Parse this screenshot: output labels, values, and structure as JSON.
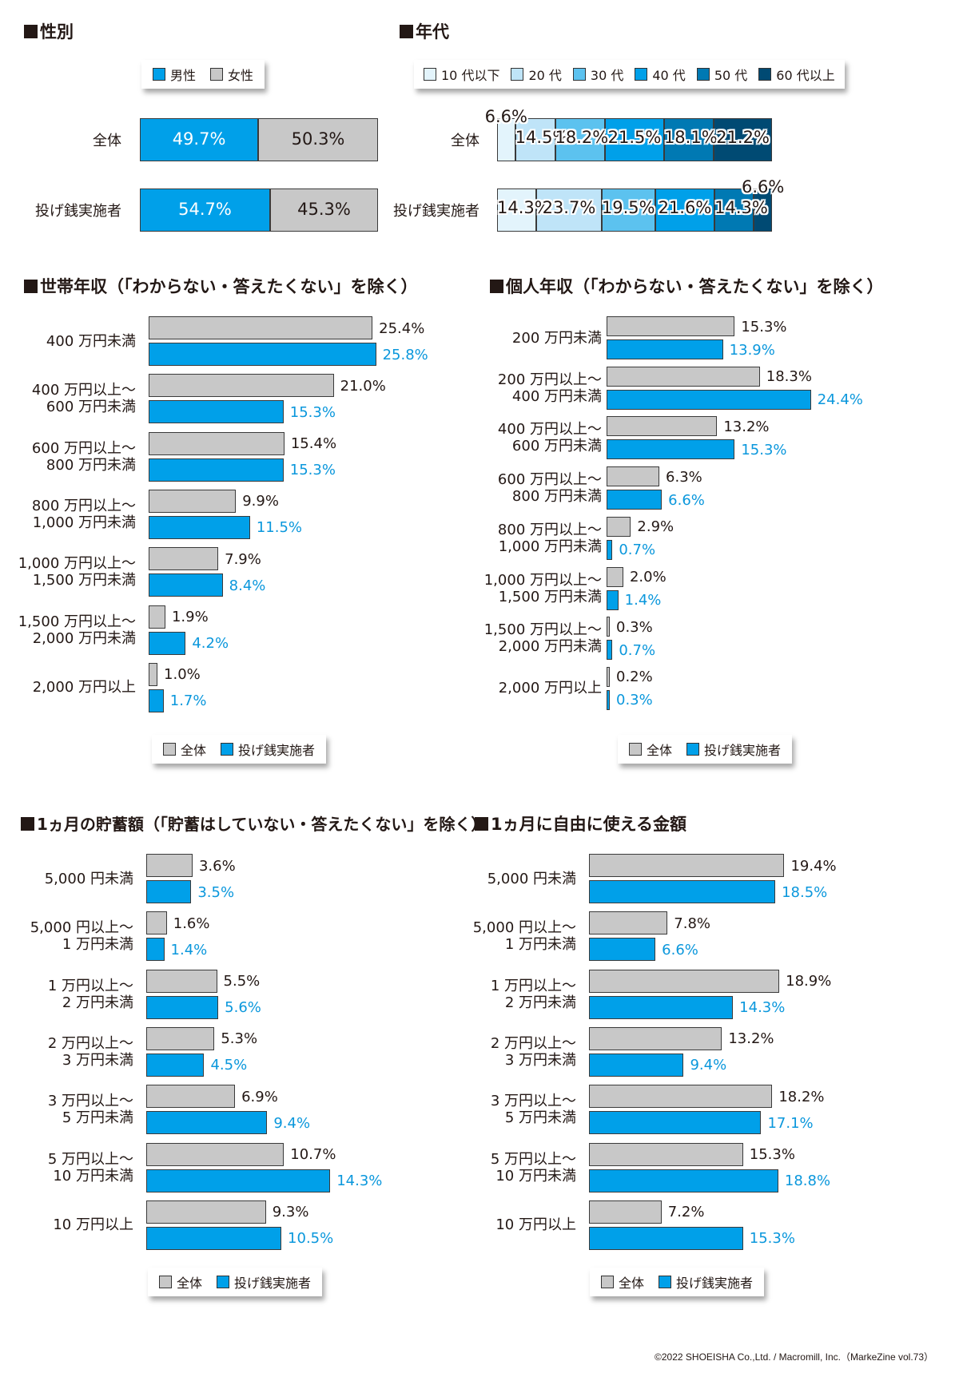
{
  "colors": {
    "all": "#c8c8c8",
    "nagesen": "#00a0e9",
    "value_all_text": "#231815",
    "value_nagesen_text": "#0a97dc",
    "age": [
      "#e3f4fc",
      "#bfe4f8",
      "#5cc2ef",
      "#00a0e9",
      "#0079b3",
      "#004a73"
    ]
  },
  "footer": "©2022 SHOEISHA Co.,Ltd. / Macromill, Inc.（MarkeZine vol.73）",
  "chart_data": [
    {
      "id": "gender",
      "type": "bar",
      "stacked": true,
      "orientation": "horizontal",
      "title": "性別",
      "legend": [
        "男性",
        "女性"
      ],
      "categories": [
        "全体",
        "投げ銭実施者"
      ],
      "series": [
        {
          "name": "男性",
          "values": [
            49.7,
            54.7
          ],
          "labels": [
            "49.7%",
            "54.7%"
          ]
        },
        {
          "name": "女性",
          "values": [
            50.3,
            45.3
          ],
          "labels": [
            "50.3%",
            "45.3%"
          ]
        }
      ],
      "unit": "%"
    },
    {
      "id": "age",
      "type": "bar",
      "stacked": true,
      "orientation": "horizontal",
      "title": "年代",
      "legend": [
        "10 代以下",
        "20 代",
        "30 代",
        "40 代",
        "50 代",
        "60 代以上"
      ],
      "categories": [
        "全体",
        "投げ銭実施者"
      ],
      "series": [
        {
          "name": "10 代以下",
          "values": [
            6.6,
            14.3
          ],
          "labels": [
            "6.6%",
            "14.3%"
          ]
        },
        {
          "name": "20 代",
          "values": [
            14.5,
            23.7
          ],
          "labels": [
            "14.5%",
            "23.7%"
          ]
        },
        {
          "name": "30 代",
          "values": [
            18.2,
            19.5
          ],
          "labels": [
            "18.2%",
            "19.5%"
          ]
        },
        {
          "name": "40 代",
          "values": [
            21.5,
            21.6
          ],
          "labels": [
            "21.5%",
            "21.6%"
          ]
        },
        {
          "name": "50 代",
          "values": [
            18.1,
            14.3
          ],
          "labels": [
            "18.1%",
            "14.3%"
          ]
        },
        {
          "name": "60 代以上",
          "values": [
            21.2,
            6.6
          ],
          "labels": [
            "21.2%",
            "6.6%"
          ]
        }
      ],
      "unit": "%"
    },
    {
      "id": "household",
      "type": "bar",
      "orientation": "horizontal",
      "title": "世帯年収（「わからない・答えたくない」を除く）",
      "legend": [
        "全体",
        "投げ銭実施者"
      ],
      "categories": [
        [
          "400 万円未満"
        ],
        [
          "400 万円以上～",
          "600 万円未満"
        ],
        [
          "600 万円以上～",
          "800 万円未満"
        ],
        [
          "800 万円以上～",
          "1,000 万円未満"
        ],
        [
          "1,000 万円以上～",
          "1,500 万円未満"
        ],
        [
          "1,500 万円以上～",
          "2,000 万円未満"
        ],
        [
          "2,000 万円以上"
        ]
      ],
      "series": [
        {
          "name": "全体",
          "values": [
            25.4,
            21.0,
            15.4,
            9.9,
            7.9,
            1.9,
            1.0
          ],
          "labels": [
            "25.4%",
            "21.0%",
            "15.4%",
            "9.9%",
            "7.9%",
            "1.9%",
            "1.0%"
          ]
        },
        {
          "name": "投げ銭実施者",
          "values": [
            25.8,
            15.3,
            15.3,
            11.5,
            8.4,
            4.2,
            1.7
          ],
          "labels": [
            "25.8%",
            "15.3%",
            "15.3%",
            "11.5%",
            "8.4%",
            "4.2%",
            "1.7%"
          ]
        }
      ],
      "unit": "%"
    },
    {
      "id": "personal",
      "type": "bar",
      "orientation": "horizontal",
      "title": "個人年収（「わからない・答えたくない」を除く）",
      "legend": [
        "全体",
        "投げ銭実施者"
      ],
      "categories": [
        [
          "200 万円未満"
        ],
        [
          "200 万円以上～",
          "400 万円未満"
        ],
        [
          "400 万円以上～",
          "600 万円未満"
        ],
        [
          "600 万円以上～",
          "800 万円未満"
        ],
        [
          "800 万円以上～",
          "1,000 万円未満"
        ],
        [
          "1,000 万円以上～",
          "1,500 万円未満"
        ],
        [
          "1,500 万円以上～",
          "2,000 万円未満"
        ],
        [
          "2,000 万円以上"
        ]
      ],
      "series": [
        {
          "name": "全体",
          "values": [
            15.3,
            18.3,
            13.2,
            6.3,
            2.9,
            2.0,
            0.3,
            0.2
          ],
          "labels": [
            "15.3%",
            "18.3%",
            "13.2%",
            "6.3%",
            "2.9%",
            "2.0%",
            "0.3%",
            "0.2%"
          ]
        },
        {
          "name": "投げ銭実施者",
          "values": [
            13.9,
            24.4,
            15.3,
            6.6,
            0.7,
            1.4,
            0.7,
            0.3
          ],
          "labels": [
            "13.9%",
            "24.4%",
            "15.3%",
            "6.6%",
            "0.7%",
            "1.4%",
            "0.7%",
            "0.3%"
          ]
        }
      ],
      "unit": "%"
    },
    {
      "id": "savings",
      "type": "bar",
      "orientation": "horizontal",
      "title": "1ヵ月の貯蓄額（「貯蓄はしていない・答えたくない」を除く）",
      "legend": [
        "全体",
        "投げ銭実施者"
      ],
      "categories": [
        [
          "5,000 円未満"
        ],
        [
          "5,000 円以上～",
          "1 万円未満"
        ],
        [
          "1 万円以上～",
          "2 万円未満"
        ],
        [
          "2 万円以上～",
          "3 万円未満"
        ],
        [
          "3 万円以上～",
          "5 万円未満"
        ],
        [
          "5 万円以上～",
          "10 万円未満"
        ],
        [
          "10 万円以上"
        ]
      ],
      "series": [
        {
          "name": "全体",
          "values": [
            3.6,
            1.6,
            5.5,
            5.3,
            6.9,
            10.7,
            9.3
          ],
          "labels": [
            "3.6%",
            "1.6%",
            "5.5%",
            "5.3%",
            "6.9%",
            "10.7%",
            "9.3%"
          ]
        },
        {
          "name": "投げ銭実施者",
          "values": [
            3.5,
            1.4,
            5.6,
            4.5,
            9.4,
            14.3,
            10.5
          ],
          "labels": [
            "3.5%",
            "1.4%",
            "5.6%",
            "4.5%",
            "9.4%",
            "14.3%",
            "10.5%"
          ]
        }
      ],
      "unit": "%"
    },
    {
      "id": "spending",
      "type": "bar",
      "orientation": "horizontal",
      "title": "1ヵ月に自由に使える金額",
      "legend": [
        "全体",
        "投げ銭実施者"
      ],
      "categories": [
        [
          "5,000 円未満"
        ],
        [
          "5,000 円以上～",
          "1 万円未満"
        ],
        [
          "1 万円以上～",
          "2 万円未満"
        ],
        [
          "2 万円以上～",
          "3 万円未満"
        ],
        [
          "3 万円以上～",
          "5 万円未満"
        ],
        [
          "5 万円以上～",
          "10 万円未満"
        ],
        [
          "10 万円以上"
        ]
      ],
      "series": [
        {
          "name": "全体",
          "values": [
            19.4,
            7.8,
            18.9,
            13.2,
            18.2,
            15.3,
            7.2
          ],
          "labels": [
            "19.4%",
            "7.8%",
            "18.9%",
            "13.2%",
            "18.2%",
            "15.3%",
            "7.2%"
          ]
        },
        {
          "name": "投げ銭実施者",
          "values": [
            18.5,
            6.6,
            14.3,
            9.4,
            17.1,
            18.8,
            15.3
          ],
          "labels": [
            "18.5%",
            "6.6%",
            "14.3%",
            "9.4%",
            "17.1%",
            "18.8%",
            "15.3%"
          ]
        }
      ],
      "unit": "%"
    }
  ]
}
